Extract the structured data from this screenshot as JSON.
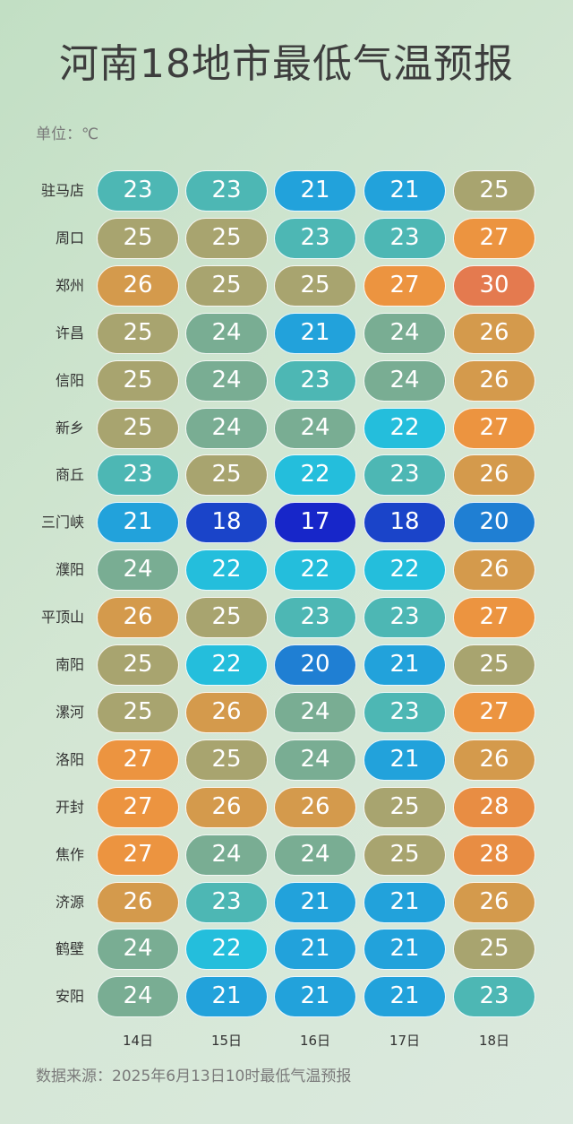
{
  "header": {
    "title": "河南18地市最低气温预报",
    "unit_label": "单位：℃"
  },
  "footer": {
    "source": "数据来源：2025年6月13日10时最低气温预报"
  },
  "chart_data": {
    "type": "table",
    "title": "河南18地市最低气温预报",
    "unit": "℃",
    "columns": [
      "14日",
      "15日",
      "16日",
      "17日",
      "18日"
    ],
    "rows": [
      {
        "city": "驻马店",
        "values": [
          23,
          23,
          21,
          21,
          25
        ]
      },
      {
        "city": "周口",
        "values": [
          25,
          25,
          23,
          23,
          27
        ]
      },
      {
        "city": "郑州",
        "values": [
          26,
          25,
          25,
          27,
          30
        ]
      },
      {
        "city": "许昌",
        "values": [
          25,
          24,
          21,
          24,
          26
        ]
      },
      {
        "city": "信阳",
        "values": [
          25,
          24,
          23,
          24,
          26
        ]
      },
      {
        "city": "新乡",
        "values": [
          25,
          24,
          24,
          22,
          27
        ]
      },
      {
        "city": "商丘",
        "values": [
          23,
          25,
          22,
          23,
          26
        ]
      },
      {
        "city": "三门峡",
        "values": [
          21,
          18,
          17,
          18,
          20
        ]
      },
      {
        "city": "濮阳",
        "values": [
          24,
          22,
          22,
          22,
          26
        ]
      },
      {
        "city": "平顶山",
        "values": [
          26,
          25,
          23,
          23,
          27
        ]
      },
      {
        "city": "南阳",
        "values": [
          25,
          22,
          20,
          21,
          25
        ]
      },
      {
        "city": "漯河",
        "values": [
          25,
          26,
          24,
          23,
          27
        ]
      },
      {
        "city": "洛阳",
        "values": [
          27,
          25,
          24,
          21,
          26
        ]
      },
      {
        "city": "开封",
        "values": [
          27,
          26,
          26,
          25,
          28
        ]
      },
      {
        "city": "焦作",
        "values": [
          27,
          24,
          24,
          25,
          28
        ]
      },
      {
        "city": "济源",
        "values": [
          26,
          23,
          21,
          21,
          26
        ]
      },
      {
        "city": "鹤壁",
        "values": [
          24,
          22,
          21,
          21,
          25
        ]
      },
      {
        "city": "安阳",
        "values": [
          24,
          21,
          21,
          21,
          23
        ]
      }
    ],
    "color_scale": {
      "17": "#1726c9",
      "18": "#1a44c9",
      "20": "#1f7fd3",
      "21": "#22a2db",
      "22": "#24bedc",
      "23": "#4db7b4",
      "24": "#79ad93",
      "25": "#a8a46f",
      "26": "#d49a4c",
      "27": "#ec9440",
      "28": "#e88d43",
      "30": "#e47a4f"
    }
  }
}
